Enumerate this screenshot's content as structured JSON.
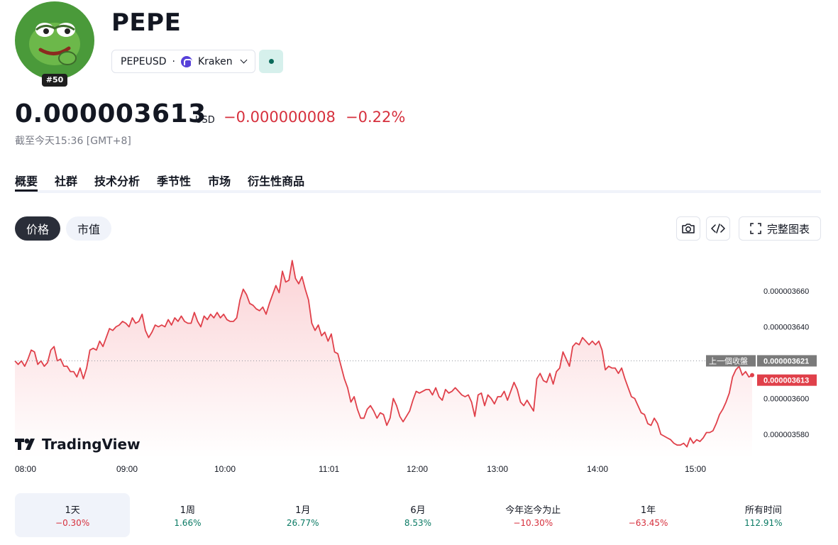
{
  "asset": {
    "name": "PEPE",
    "rank": "#50",
    "symbol": "PEPEUSD",
    "separator": "·",
    "exchange": "Kraken"
  },
  "quote": {
    "price": "0.000003613",
    "currency": "USD",
    "change_abs": "−0.000000008",
    "change_pct": "−0.22%",
    "timestamp": "截至今天15:36 [GMT+8]"
  },
  "tabs": [
    "概要",
    "社群",
    "技术分析",
    "季节性",
    "市场",
    "衍生性商品"
  ],
  "chart_controls": {
    "price_label": "价格",
    "cap_label": "市值",
    "fullscreen_label": "完整图表"
  },
  "chart_data": {
    "type": "area",
    "x_labels": [
      "08:00",
      "09:00",
      "10:00",
      "11:01",
      "12:00",
      "13:00",
      "14:00",
      "15:00"
    ],
    "y_ticks": [
      "0.000003660",
      "0.000003640",
      "0.000003600",
      "0.000003580"
    ],
    "ylim": [
      3.57e-06,
      3.68e-06
    ],
    "series": [
      {
        "values": [
          3.621,
          3.619,
          3.621,
          3.618,
          3.622,
          3.627,
          3.626,
          3.619,
          3.621,
          3.618,
          3.62,
          3.627,
          3.629,
          3.621,
          3.622,
          3.618,
          3.618,
          3.615,
          3.615,
          3.612,
          3.617,
          3.611,
          3.617,
          3.627,
          3.628,
          3.627,
          3.632,
          3.629,
          3.634,
          3.639,
          3.638,
          3.64,
          3.641,
          3.643,
          3.642,
          3.64,
          3.645,
          3.642,
          3.643,
          3.647,
          3.638,
          3.634,
          3.637,
          3.641,
          3.64,
          3.641,
          3.64,
          3.644,
          3.641,
          3.645,
          3.643,
          3.646,
          3.643,
          3.642,
          3.642,
          3.648,
          3.643,
          3.64,
          3.646,
          3.644,
          3.647,
          3.645,
          3.648,
          3.645,
          3.647,
          3.644,
          3.643,
          3.643,
          3.645,
          3.655,
          3.661,
          3.658,
          3.653,
          3.652,
          3.65,
          3.649,
          3.651,
          3.647,
          3.653,
          3.658,
          3.663,
          3.659,
          3.671,
          3.665,
          3.666,
          3.677,
          3.667,
          3.664,
          3.668,
          3.661,
          3.655,
          3.642,
          3.638,
          3.641,
          3.635,
          3.637,
          3.632,
          3.636,
          3.626,
          3.625,
          3.618,
          3.611,
          3.606,
          3.598,
          3.601,
          3.594,
          3.589,
          3.589,
          3.594,
          3.596,
          3.593,
          3.589,
          3.592,
          3.591,
          3.585,
          3.589,
          3.6,
          3.596,
          3.59,
          3.587,
          3.59,
          3.593,
          3.599,
          3.604,
          3.603,
          3.604,
          3.605,
          3.605,
          3.602,
          3.606,
          3.601,
          3.599,
          3.605,
          3.603,
          3.604,
          3.606,
          3.604,
          3.602,
          3.601,
          3.602,
          3.598,
          3.59,
          3.602,
          3.603,
          3.596,
          3.602,
          3.6,
          3.597,
          3.601,
          3.601,
          3.604,
          3.599,
          3.604,
          3.609,
          3.605,
          3.598,
          3.596,
          3.599,
          3.596,
          3.593,
          3.611,
          3.614,
          3.61,
          3.609,
          3.614,
          3.608,
          3.615,
          3.617,
          3.626,
          3.622,
          3.618,
          3.629,
          3.631,
          3.63,
          3.634,
          3.632,
          3.63,
          3.632,
          3.63,
          3.632,
          3.627,
          3.616,
          3.618,
          3.617,
          3.617,
          3.614,
          3.617,
          3.611,
          3.606,
          3.601,
          3.6,
          3.596,
          3.592,
          3.591,
          3.586,
          3.585,
          3.589,
          3.586,
          3.58,
          3.579,
          3.578,
          3.577,
          3.575,
          3.574,
          3.574,
          3.575,
          3.573,
          3.578,
          3.575,
          3.577,
          3.576,
          3.578,
          3.581,
          3.581,
          3.582,
          3.586,
          3.591,
          3.594,
          3.598,
          3.603,
          3.612,
          3.616,
          3.618,
          3.613,
          3.615,
          3.612,
          3.613
        ]
      }
    ],
    "prev_close": 3.621,
    "prev_close_label": "上一個收盤",
    "prev_close_value": "0.000003621",
    "current_value": "0.000003613",
    "brand": "TradingView",
    "colors": {
      "line": "#e0404a",
      "fill_top": "#fbd3d6",
      "fill_bottom": "#ffffff",
      "current_tag": "#e0404a",
      "prev_tag": "#7a7a7a"
    }
  },
  "periods": [
    {
      "label": "1天",
      "value": "−0.30%",
      "trend": "neg"
    },
    {
      "label": "1周",
      "value": "1.66%",
      "trend": "pos"
    },
    {
      "label": "1月",
      "value": "26.77%",
      "trend": "pos"
    },
    {
      "label": "6月",
      "value": "8.53%",
      "trend": "pos"
    },
    {
      "label": "今年迄今为止",
      "value": "−10.30%",
      "trend": "neg"
    },
    {
      "label": "1年",
      "value": "−63.45%",
      "trend": "neg"
    },
    {
      "label": "所有时间",
      "value": "112.91%",
      "trend": "pos"
    }
  ]
}
